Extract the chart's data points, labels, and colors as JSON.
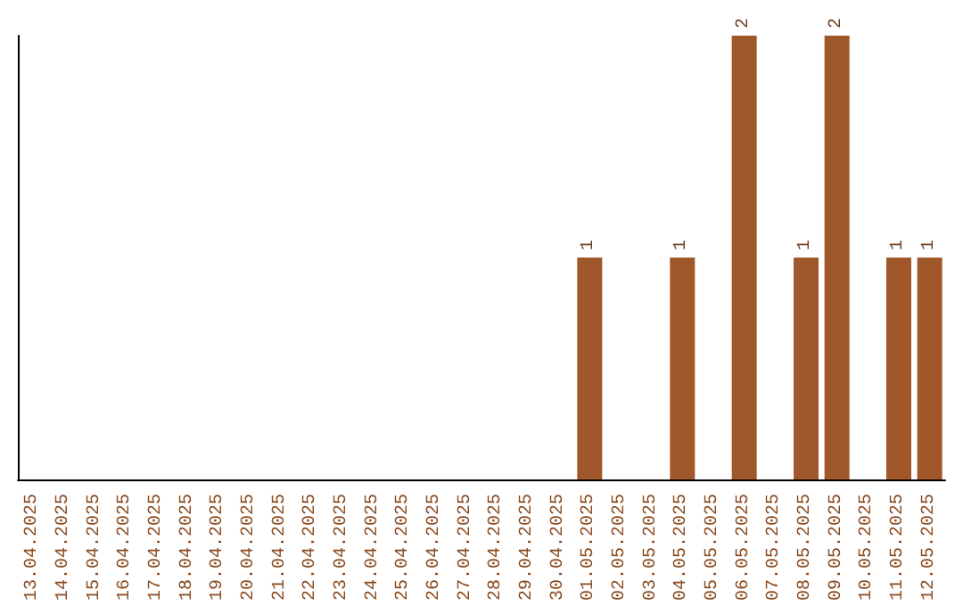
{
  "chart_data": {
    "type": "bar",
    "categories": [
      "13.04.2025",
      "14.04.2025",
      "15.04.2025",
      "16.04.2025",
      "17.04.2025",
      "18.04.2025",
      "19.04.2025",
      "20.04.2025",
      "21.04.2025",
      "22.04.2025",
      "23.04.2025",
      "24.04.2025",
      "25.04.2025",
      "26.04.2025",
      "27.04.2025",
      "28.04.2025",
      "29.04.2025",
      "30.04.2025",
      "01.05.2025",
      "02.05.2025",
      "03.05.2025",
      "04.05.2025",
      "05.05.2025",
      "06.05.2025",
      "07.05.2025",
      "08.05.2025",
      "09.05.2025",
      "10.05.2025",
      "11.05.2025",
      "12.05.2025"
    ],
    "values": [
      null,
      null,
      null,
      null,
      null,
      null,
      null,
      null,
      null,
      null,
      null,
      null,
      null,
      null,
      null,
      null,
      null,
      null,
      1,
      null,
      null,
      1,
      null,
      2,
      null,
      1,
      2,
      null,
      1,
      1
    ],
    "color": "#a0582a",
    "data_labels": true,
    "tick_labels": "x"
  }
}
